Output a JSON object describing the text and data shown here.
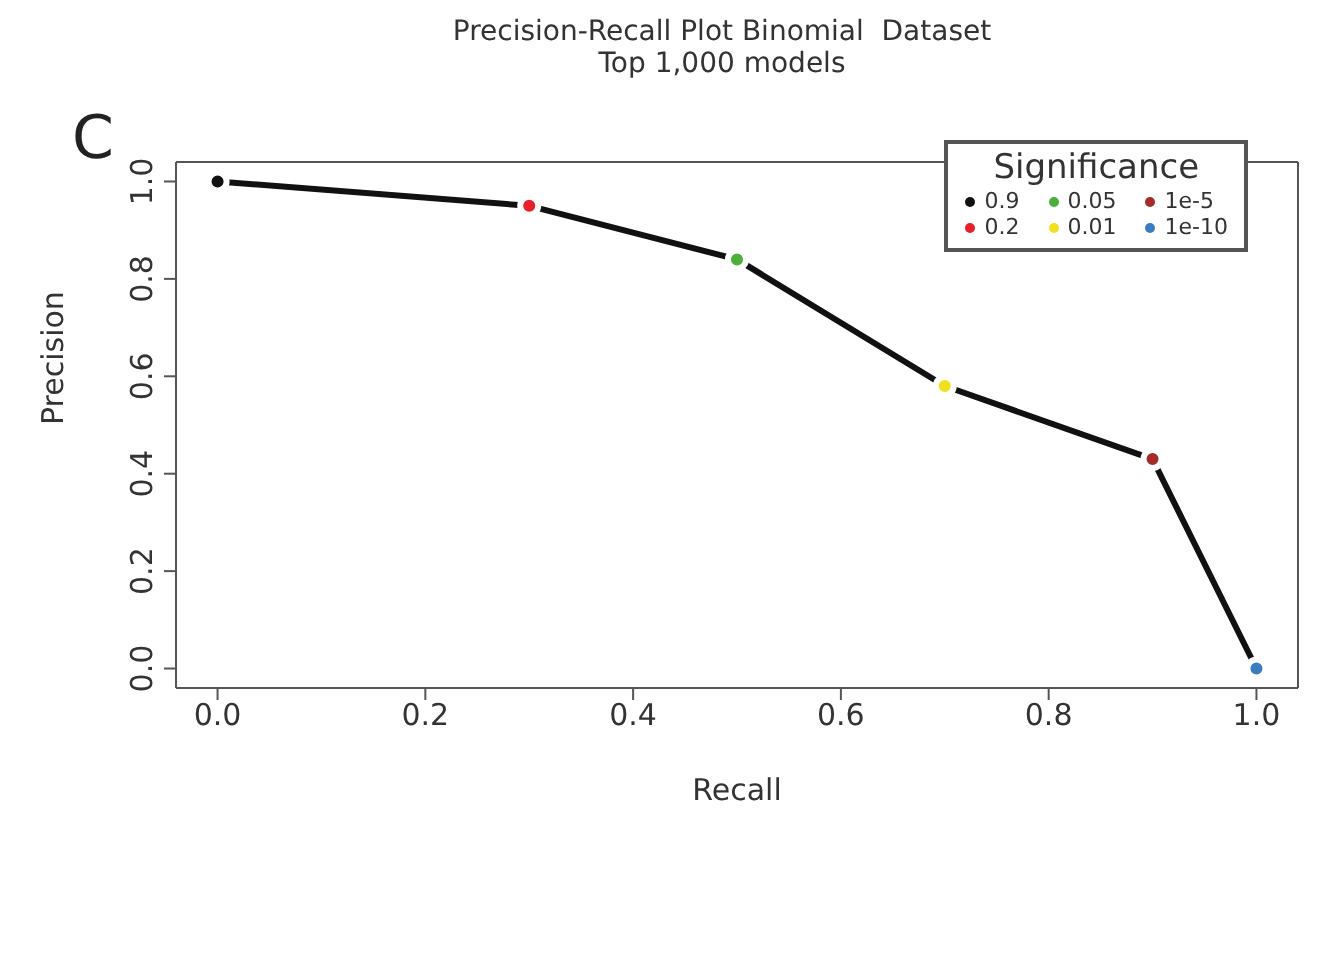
{
  "chart_data": {
    "type": "scatter",
    "title": "Precision-Recall Plot Binomial  Dataset",
    "subtitle": "Top 1,000 models",
    "annotations": [
      "C"
    ],
    "xlabel": "Recall",
    "ylabel": "Precision",
    "xlim": [
      -0.04,
      1.04
    ],
    "xticks": [
      {
        "value": 0,
        "label": "0.0"
      },
      0.2,
      0.4,
      0.6,
      0.8,
      {
        "value": 1,
        "label": "1.0"
      }
    ],
    "ylim": [
      -0.04,
      1.04
    ],
    "yticks": [
      {
        "value": 0,
        "label": "0.0"
      },
      0.2,
      0.4,
      0.6,
      0.8,
      {
        "value": 1,
        "label": "1.0"
      }
    ],
    "legend": "top right",
    "legend_title": "Significance",
    "marker": "circle",
    "series": [
      {
        "type": "line",
        "color": "#111111",
        "x": [
          0,
          0.3,
          0.5,
          0.7,
          0.9,
          1.0
        ],
        "values": [
          1.0,
          0.95,
          0.84,
          0.58,
          0.43,
          0.0
        ],
        "marker": "none"
      },
      {
        "name": "0.9",
        "color": "#111111",
        "x": [
          0
        ],
        "values": [
          1.0
        ]
      },
      {
        "name": "0.2",
        "color": "#e8202a",
        "x": [
          0.3
        ],
        "values": [
          0.95
        ]
      },
      {
        "name": "0.05",
        "color": "#4caf3c",
        "x": [
          0.5
        ],
        "values": [
          0.84
        ]
      },
      {
        "name": "0.01",
        "color": "#f0e020",
        "x": [
          0.7
        ],
        "values": [
          0.58
        ]
      },
      {
        "name": "1e-5",
        "color": "#a52a2a",
        "x": [
          0.9
        ],
        "values": [
          0.43
        ]
      },
      {
        "name": "1e-10",
        "color": "#3a7cc0",
        "x": [
          1.0
        ],
        "values": [
          0.0
        ]
      }
    ]
  }
}
